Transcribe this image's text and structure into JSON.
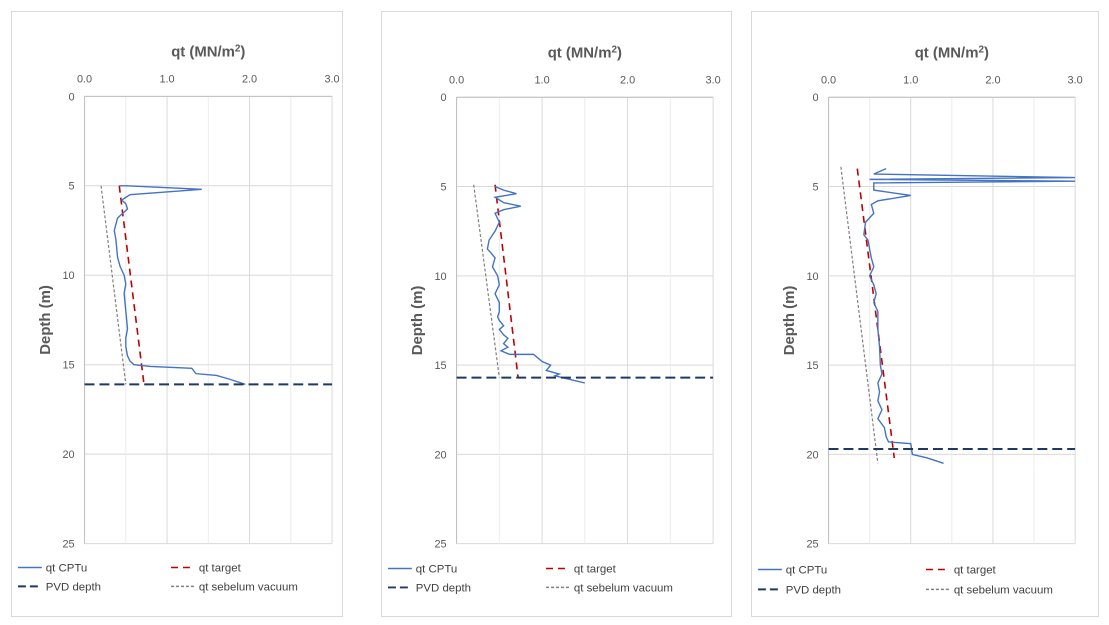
{
  "chart_data": [
    {
      "type": "line",
      "xlabel": "qt (MN/m²)",
      "ylabel": "Depth (m)",
      "xlim": [
        0,
        3
      ],
      "ylim": [
        0,
        25
      ],
      "y_reversed": true,
      "x_axis_position": "top",
      "x_ticks": [
        "0.0",
        "1.0",
        "2.0",
        "3.0"
      ],
      "y_ticks": [
        "0",
        "5",
        "10",
        "15",
        "20",
        "25"
      ],
      "grid": true,
      "legend_position": "bottom",
      "series": [
        {
          "name": "qt CPTu",
          "color": "#4472c4",
          "style": "solid",
          "x": [
            0.42,
            0.5,
            1.42,
            0.55,
            0.45,
            0.5,
            0.52,
            0.4,
            0.36,
            0.38,
            0.4,
            0.43,
            0.48,
            0.5,
            0.48,
            0.5,
            0.52,
            0.5,
            0.5,
            0.52,
            0.55,
            0.6,
            0.8,
            1.3,
            1.35,
            1.6,
            1.75,
            1.95
          ],
          "y": [
            5,
            5.0,
            5.2,
            5.5,
            5.8,
            6.0,
            6.3,
            6.8,
            7.5,
            8.0,
            9.0,
            9.5,
            10.0,
            10.5,
            11.0,
            12.0,
            13.0,
            13.5,
            14.0,
            14.5,
            14.8,
            15.0,
            15.1,
            15.2,
            15.5,
            15.6,
            15.8,
            16.1
          ]
        },
        {
          "name": "qt target",
          "color": "#c00000",
          "style": "dashed",
          "x": [
            0.42,
            0.72
          ],
          "y": [
            5,
            16.1
          ]
        },
        {
          "name": "PVD depth",
          "color": "#203864",
          "style": "dashed",
          "x": [
            0,
            3
          ],
          "y": [
            16.1,
            16.1
          ]
        },
        {
          "name": "qt sebelum vacuum",
          "color": "#808080",
          "style": "dotted",
          "x": [
            0.2,
            0.5
          ],
          "y": [
            5,
            16.1
          ]
        }
      ]
    },
    {
      "type": "line",
      "xlabel": "qt (MN/m²)",
      "ylabel": "Depth (m)",
      "xlim": [
        0,
        3
      ],
      "ylim": [
        0,
        25
      ],
      "y_reversed": true,
      "x_axis_position": "top",
      "x_ticks": [
        "0.0",
        "1.0",
        "2.0",
        "3.0"
      ],
      "y_ticks": [
        "0",
        "5",
        "10",
        "15",
        "20",
        "25"
      ],
      "grid": true,
      "legend_position": "bottom",
      "series": [
        {
          "name": "qt CPTu",
          "color": "#4472c4",
          "style": "solid",
          "x": [
            0.45,
            0.55,
            0.7,
            0.45,
            0.55,
            0.75,
            0.55,
            0.45,
            0.5,
            0.45,
            0.38,
            0.36,
            0.4,
            0.45,
            0.42,
            0.48,
            0.5,
            0.45,
            0.5,
            0.5,
            0.48,
            0.5,
            0.55,
            0.5,
            0.55,
            0.6,
            0.55,
            0.6,
            0.52,
            0.62,
            0.9,
            1.0,
            1.1,
            1.05,
            1.2,
            1.15,
            1.5
          ],
          "y": [
            5,
            5.2,
            5.4,
            5.6,
            5.9,
            6.1,
            6.3,
            6.5,
            7.0,
            7.5,
            8.0,
            8.5,
            8.7,
            9.0,
            9.5,
            10.0,
            10.5,
            11.0,
            11.5,
            12.0,
            12.3,
            12.5,
            12.8,
            13.0,
            13.3,
            13.5,
            13.8,
            14.0,
            14.2,
            14.4,
            14.4,
            14.8,
            15.0,
            15.3,
            15.5,
            15.6,
            16.0
          ]
        },
        {
          "name": "qt target",
          "color": "#c00000",
          "style": "dashed",
          "x": [
            0.45,
            0.72
          ],
          "y": [
            4.9,
            15.7
          ]
        },
        {
          "name": "PVD depth",
          "color": "#203864",
          "style": "dashed",
          "x": [
            0,
            3
          ],
          "y": [
            15.7,
            15.7
          ]
        },
        {
          "name": "qt sebelum vacuum",
          "color": "#808080",
          "style": "dotted",
          "x": [
            0.2,
            0.5
          ],
          "y": [
            4.9,
            15.7
          ]
        }
      ]
    },
    {
      "type": "line",
      "xlabel": "qt (MN/m²)",
      "ylabel": "Depth (m)",
      "xlim": [
        0,
        3
      ],
      "ylim": [
        0,
        25
      ],
      "y_reversed": true,
      "x_axis_position": "top",
      "x_ticks": [
        "0.0",
        "1.0",
        "2.0",
        "3.0"
      ],
      "y_ticks": [
        "0",
        "5",
        "10",
        "15",
        "20",
        "25"
      ],
      "grid": true,
      "legend_position": "bottom",
      "series": [
        {
          "name": "qt CPTu",
          "color": "#4472c4",
          "style": "solid",
          "x": [
            0.7,
            0.55,
            3.0,
            0.5,
            3.0,
            0.55,
            0.55,
            1.0,
            0.6,
            0.52,
            0.55,
            0.45,
            0.43,
            0.48,
            0.5,
            0.52,
            0.55,
            0.5,
            0.55,
            0.58,
            0.55,
            0.6,
            0.6,
            0.62,
            0.63,
            0.65,
            0.6,
            0.62,
            0.6,
            0.65,
            0.6,
            0.68,
            0.7,
            0.73,
            1.0,
            1.02,
            1.2,
            1.4
          ],
          "y": [
            4.0,
            4.3,
            4.5,
            4.6,
            4.7,
            4.8,
            5.2,
            5.5,
            5.8,
            6.0,
            6.5,
            7.0,
            7.7,
            8.0,
            8.5,
            9.0,
            9.5,
            10.0,
            10.5,
            11.0,
            11.5,
            12.0,
            13.0,
            14.0,
            15.0,
            15.5,
            16.0,
            16.5,
            17.0,
            17.5,
            18.0,
            18.5,
            19.0,
            19.3,
            19.4,
            20.0,
            20.2,
            20.5
          ]
        },
        {
          "name": "qt target",
          "color": "#c00000",
          "style": "dashed",
          "x": [
            0.35,
            0.8
          ],
          "y": [
            4.0,
            20.2
          ]
        },
        {
          "name": "PVD depth",
          "color": "#203864",
          "style": "dashed",
          "x": [
            0,
            3
          ],
          "y": [
            19.7,
            19.7
          ]
        },
        {
          "name": "qt sebelum vacuum",
          "color": "#808080",
          "style": "dotted",
          "x": [
            0.15,
            0.6
          ],
          "y": [
            3.9,
            20.5
          ]
        }
      ]
    }
  ]
}
